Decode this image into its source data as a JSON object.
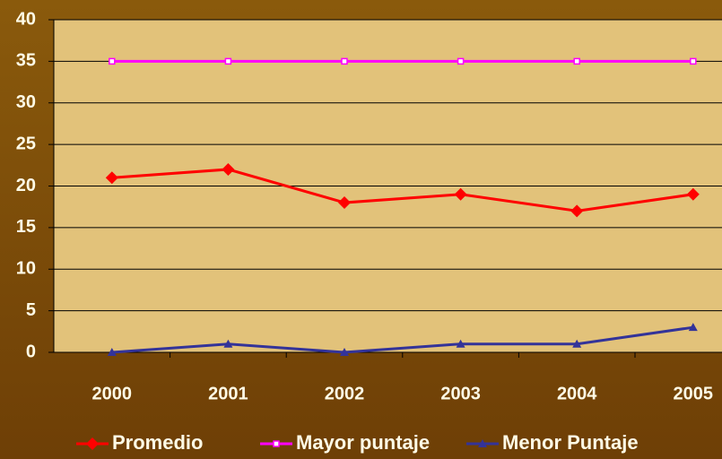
{
  "chart_data": {
    "type": "line",
    "categories": [
      "2000",
      "2001",
      "2002",
      "2003",
      "2004",
      "2005"
    ],
    "series": [
      {
        "name": "Promedio",
        "color": "#ff0000",
        "marker": "diamond",
        "values": [
          21,
          22,
          18,
          19,
          17,
          19
        ]
      },
      {
        "name": "Mayor puntaje",
        "color": "#ff00ff",
        "marker": "square",
        "values": [
          35,
          35,
          35,
          35,
          35,
          35
        ]
      },
      {
        "name": "Menor Puntaje",
        "color": "#333399",
        "marker": "triangle",
        "values": [
          0,
          1,
          0,
          1,
          1,
          3
        ]
      }
    ],
    "ylim": [
      0,
      40
    ],
    "yticks": [
      0,
      5,
      10,
      15,
      20,
      25,
      30,
      35,
      40
    ],
    "grid": true,
    "legend": "bottom"
  }
}
